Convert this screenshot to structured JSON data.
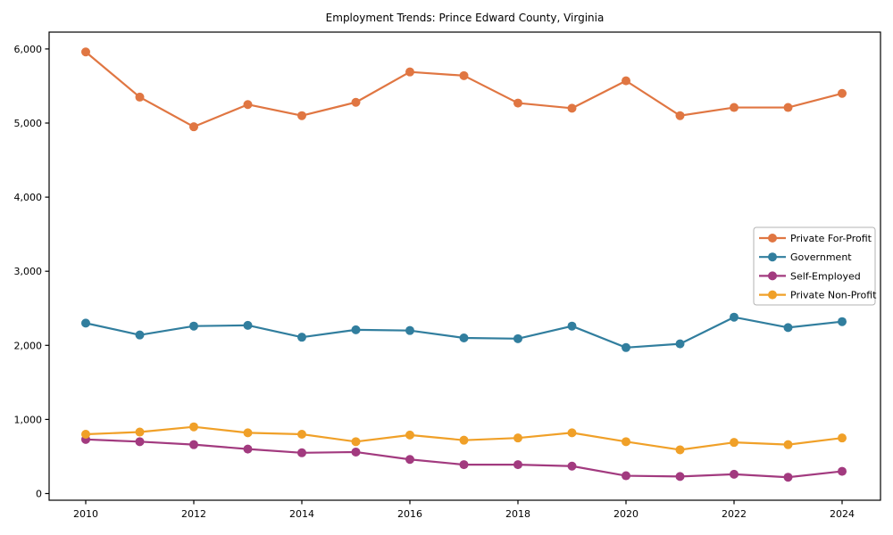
{
  "figure": {
    "background": "#ffffff",
    "spine_color": "#000000",
    "legend_border_color": "#b3b3b3",
    "legend_background": "#ffffff"
  },
  "chart_data": {
    "type": "line",
    "title": "Employment Trends: Prince Edward County, Virginia",
    "xlabel": "",
    "ylabel": "",
    "x": [
      2010,
      2011,
      2012,
      2013,
      2014,
      2015,
      2016,
      2017,
      2018,
      2019,
      2020,
      2021,
      2022,
      2023,
      2024
    ],
    "x_tick_years": [
      2010,
      2012,
      2014,
      2016,
      2018,
      2020,
      2022,
      2024
    ],
    "x_tick_labels": [
      "2010",
      "2012",
      "2014",
      "2016",
      "2018",
      "2020",
      "2022",
      "2024"
    ],
    "y_ticks": [
      0,
      1000,
      2000,
      3000,
      4000,
      5000,
      6000
    ],
    "y_tick_labels": [
      "0",
      "1,000",
      "2,000",
      "3,000",
      "4,000",
      "5,000",
      "6,000"
    ],
    "ylim": [
      -90,
      6230
    ],
    "grid": false,
    "legend_position": "center right",
    "marker": "circle",
    "series": [
      {
        "name": "Private For-Profit",
        "color": "#e07642",
        "values": [
          5960,
          5350,
          4950,
          5250,
          5100,
          5280,
          5690,
          5640,
          5270,
          5200,
          5570,
          5100,
          5210,
          5210,
          5400
        ]
      },
      {
        "name": "Government",
        "color": "#317e9e",
        "values": [
          2300,
          2140,
          2260,
          2270,
          2110,
          2210,
          2200,
          2100,
          2090,
          2260,
          1970,
          2020,
          2380,
          2240,
          2320
        ]
      },
      {
        "name": "Self-Employed",
        "color": "#a23a7f",
        "values": [
          730,
          700,
          660,
          600,
          550,
          560,
          460,
          390,
          390,
          370,
          240,
          230,
          260,
          220,
          300
        ]
      },
      {
        "name": "Private Non-Profit",
        "color": "#f0a028",
        "values": [
          800,
          830,
          900,
          820,
          800,
          700,
          790,
          720,
          750,
          820,
          700,
          590,
          690,
          660,
          750
        ]
      }
    ]
  }
}
